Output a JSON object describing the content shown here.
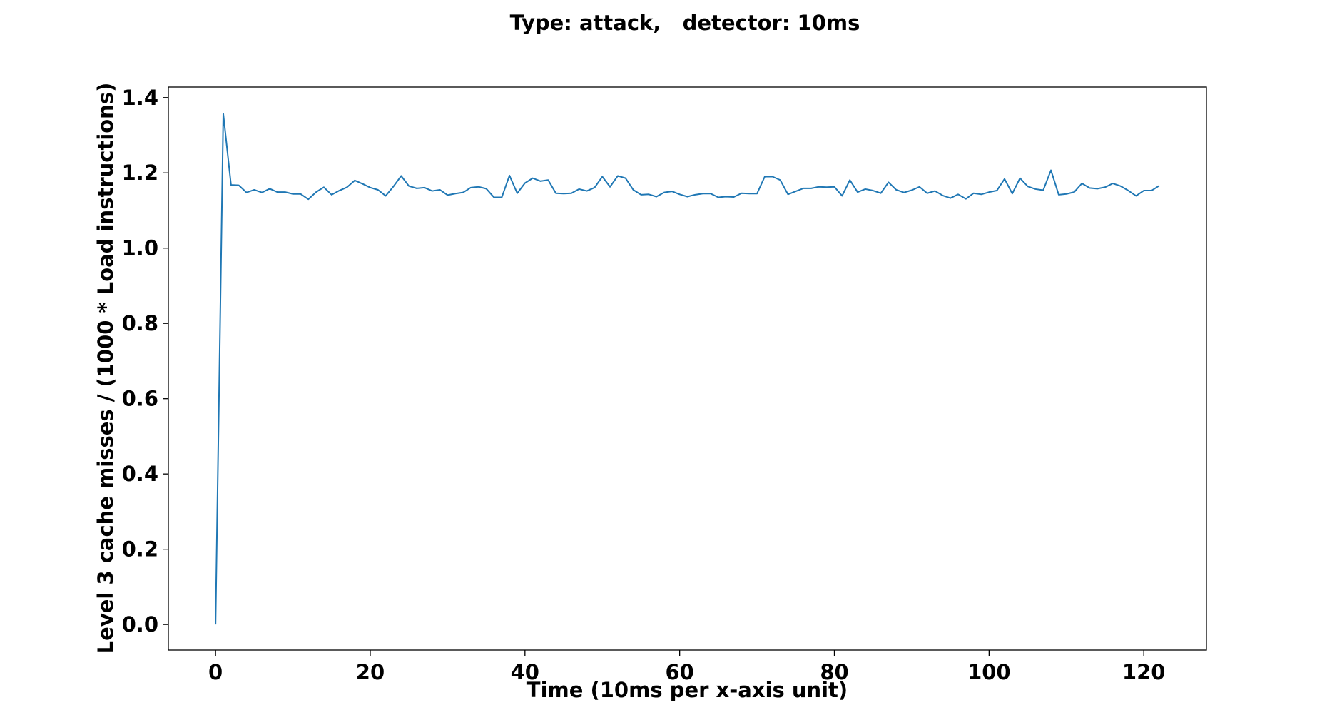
{
  "chart_data": {
    "type": "line",
    "title": "Type: attack,   detector: 10ms",
    "xlabel": "Time (10ms per x-axis unit)",
    "ylabel": "Level 3 cache misses / (1000 * Load instructions)",
    "xlim": [
      -6.1,
      128.1
    ],
    "ylim": [
      -0.068,
      1.428
    ],
    "xticks": [
      0,
      20,
      40,
      60,
      80,
      100,
      120
    ],
    "yticks": [
      0.0,
      0.2,
      0.4,
      0.6,
      0.8,
      1.0,
      1.2,
      1.4
    ],
    "xtick_labels": [
      "0",
      "20",
      "40",
      "60",
      "80",
      "100",
      "120"
    ],
    "ytick_labels": [
      "0.0",
      "0.2",
      "0.4",
      "0.6",
      "0.8",
      "1.0",
      "1.2",
      "1.4"
    ],
    "grid": false,
    "line_color": "#1f77b4",
    "series": [
      {
        "values": [
          0.0,
          1.357,
          1.168,
          1.167,
          1.148,
          1.155,
          1.148,
          1.158,
          1.149,
          1.149,
          1.144,
          1.144,
          1.13,
          1.149,
          1.162,
          1.142,
          1.153,
          1.162,
          1.18,
          1.171,
          1.161,
          1.155,
          1.139,
          1.164,
          1.192,
          1.165,
          1.159,
          1.161,
          1.152,
          1.155,
          1.141,
          1.145,
          1.148,
          1.161,
          1.163,
          1.158,
          1.135,
          1.135,
          1.193,
          1.146,
          1.173,
          1.186,
          1.178,
          1.181,
          1.146,
          1.145,
          1.146,
          1.157,
          1.152,
          1.161,
          1.19,
          1.163,
          1.192,
          1.186,
          1.155,
          1.142,
          1.143,
          1.137,
          1.148,
          1.151,
          1.143,
          1.137,
          1.142,
          1.145,
          1.145,
          1.135,
          1.137,
          1.136,
          1.146,
          1.145,
          1.145,
          1.19,
          1.19,
          1.181,
          1.143,
          1.151,
          1.159,
          1.159,
          1.163,
          1.162,
          1.163,
          1.139,
          1.181,
          1.149,
          1.157,
          1.153,
          1.146,
          1.175,
          1.155,
          1.148,
          1.154,
          1.163,
          1.146,
          1.152,
          1.14,
          1.133,
          1.143,
          1.131,
          1.146,
          1.143,
          1.149,
          1.153,
          1.184,
          1.145,
          1.186,
          1.164,
          1.157,
          1.154,
          1.207,
          1.142,
          1.144,
          1.149,
          1.172,
          1.16,
          1.158,
          1.162,
          1.172,
          1.165,
          1.153,
          1.139,
          1.153,
          1.153,
          1.166
        ]
      }
    ]
  }
}
